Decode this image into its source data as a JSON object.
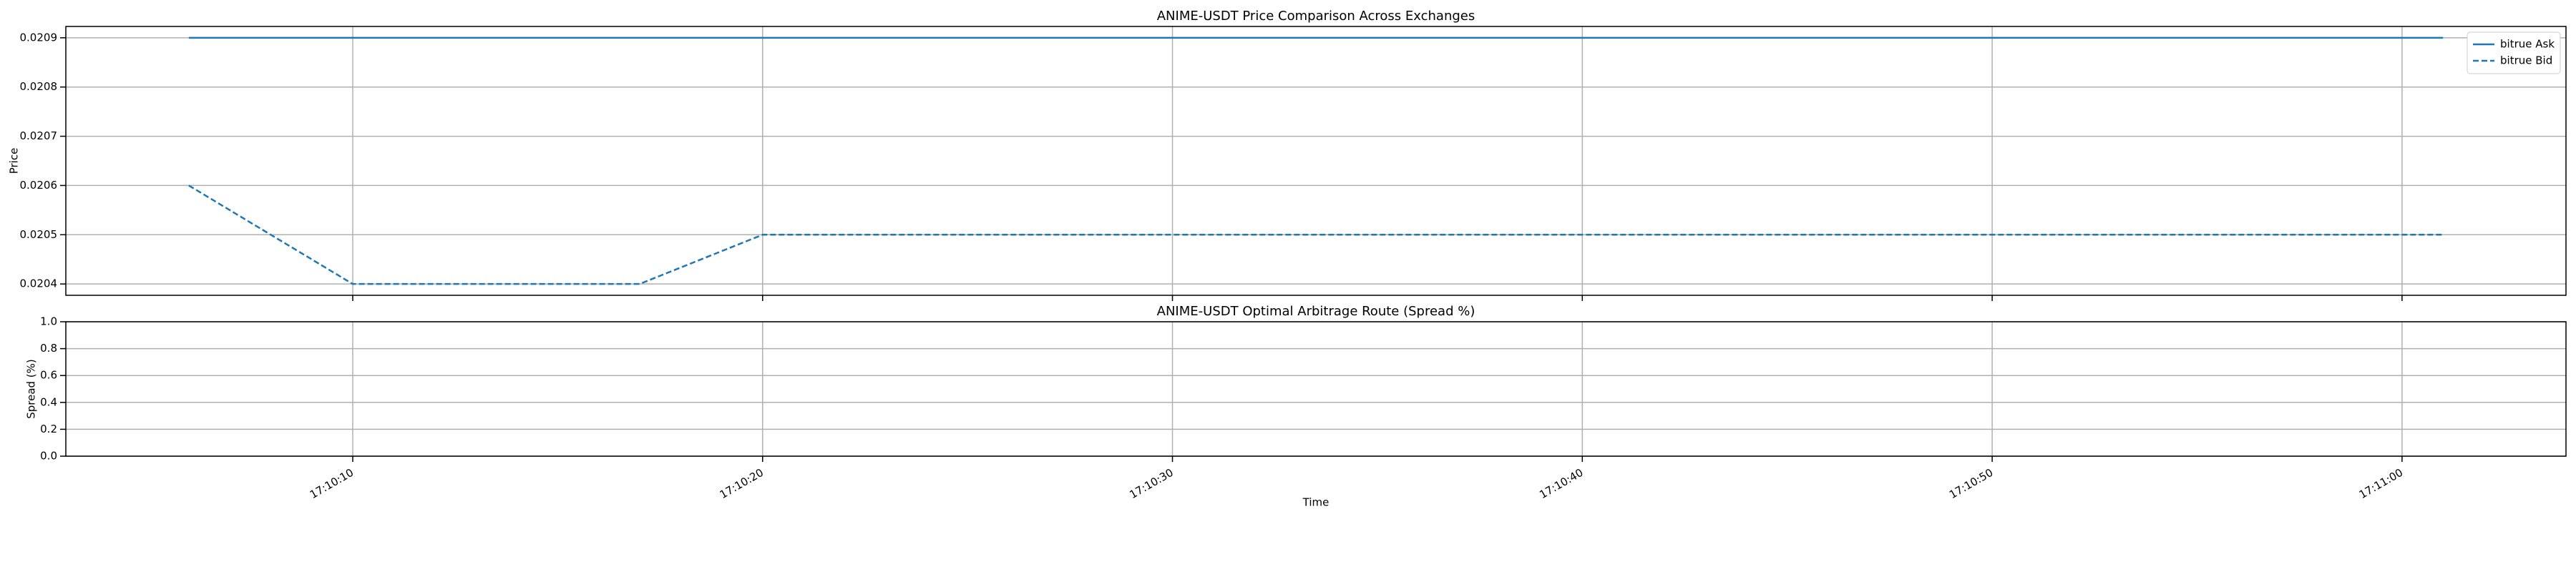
{
  "chart_data": [
    {
      "type": "line",
      "title": "ANIME-USDT Price Comparison Across Exchanges",
      "ylabel": "Price",
      "x": [
        "17:10:06",
        "17:10:10",
        "17:10:17",
        "17:10:20",
        "17:11:01"
      ],
      "series": [
        {
          "name": "bitrue Ask",
          "color": "#1f77b4",
          "dash": false,
          "values": [
            0.0209,
            0.0209,
            0.0209,
            0.0209,
            0.0209
          ]
        },
        {
          "name": "bitrue Bid",
          "color": "#1f77b4",
          "dash": true,
          "values": [
            0.0206,
            0.0204,
            0.0204,
            0.0205,
            0.0205
          ]
        }
      ],
      "xlim": [
        "17:10:03",
        "17:11:04"
      ],
      "xticks": [
        "17:10:10",
        "17:10:20",
        "17:10:30",
        "17:10:40",
        "17:10:50",
        "17:11:00"
      ],
      "ylim": [
        0.020377,
        0.020923
      ],
      "yticks": [
        0.0204,
        0.0205,
        0.0206,
        0.0207,
        0.0208,
        0.0209
      ],
      "grid": true,
      "legend": "upper right"
    },
    {
      "type": "line",
      "title": "ANIME-USDT Optimal Arbitrage Route (Spread %)",
      "ylabel": "Spread (%)",
      "xlabel": "Time",
      "x": [],
      "series": [],
      "xlim": [
        "17:10:03",
        "17:11:04"
      ],
      "xticks": [
        "17:10:10",
        "17:10:20",
        "17:10:30",
        "17:10:40",
        "17:10:50",
        "17:11:00"
      ],
      "ylim": [
        0,
        1
      ],
      "yticks": [
        {
          "value": 0,
          "label": "0.0"
        },
        {
          "value": 0.2,
          "label": "0.2"
        },
        {
          "value": 0.4,
          "label": "0.4"
        },
        {
          "value": 0.6,
          "label": "0.6"
        },
        {
          "value": 0.8,
          "label": "0.8"
        },
        {
          "value": 1,
          "label": "1.0"
        }
      ],
      "grid": true
    }
  ]
}
